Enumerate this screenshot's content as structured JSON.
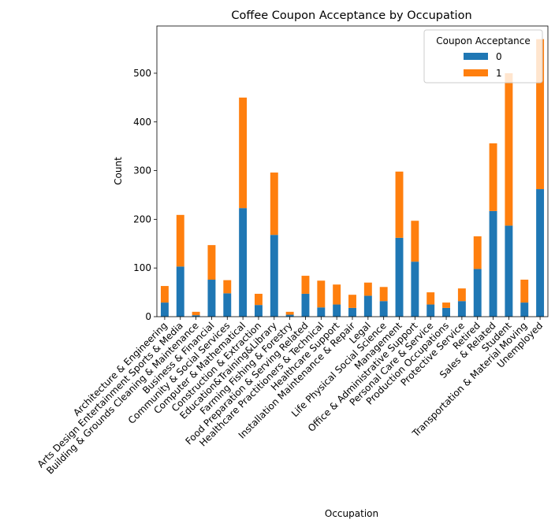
{
  "chart_data": {
    "type": "bar",
    "stacked": true,
    "title": "Coffee Coupon Acceptance by Occupation",
    "xlabel": "Occupation",
    "ylabel": "Count",
    "ylim": [
      0,
      597
    ],
    "yticks": [
      0,
      100,
      200,
      300,
      400,
      500
    ],
    "grid": false,
    "legend": {
      "title": "Coupon Acceptance",
      "position": "top-right"
    },
    "categories": [
      "Architecture & Engineering",
      "Arts Design Entertainment Sports & Media",
      "Building & Grounds Cleaning & Maintenance",
      "Business & Financial",
      "Community & Social Services",
      "Computer & Mathematical",
      "Construction & Extraction",
      "Education&Training&Library",
      "Farming Fishing & Forestry",
      "Food Preparation & Serving Related",
      "Healthcare Practitioners & Technical",
      "Healthcare Support",
      "Installation Maintenance & Repair",
      "Legal",
      "Life Physical Social Science",
      "Management",
      "Office & Administrative Support",
      "Personal Care & Service",
      "Production Occupations",
      "Protective Service",
      "Retired",
      "Sales & Related",
      "Student",
      "Transportation & Material Moving",
      "Unemployed"
    ],
    "series": [
      {
        "name": "0",
        "color": "#1f77b4",
        "values": [
          29,
          103,
          3,
          76,
          48,
          223,
          24,
          168,
          4,
          47,
          19,
          25,
          18,
          43,
          32,
          162,
          113,
          25,
          18,
          32,
          98,
          217,
          187,
          29,
          262
        ]
      },
      {
        "name": "1",
        "color": "#ff7f0e",
        "values": [
          34,
          106,
          7,
          71,
          27,
          227,
          23,
          128,
          6,
          37,
          55,
          41,
          27,
          27,
          29,
          136,
          84,
          25,
          11,
          26,
          67,
          139,
          313,
          47,
          308
        ]
      }
    ]
  }
}
